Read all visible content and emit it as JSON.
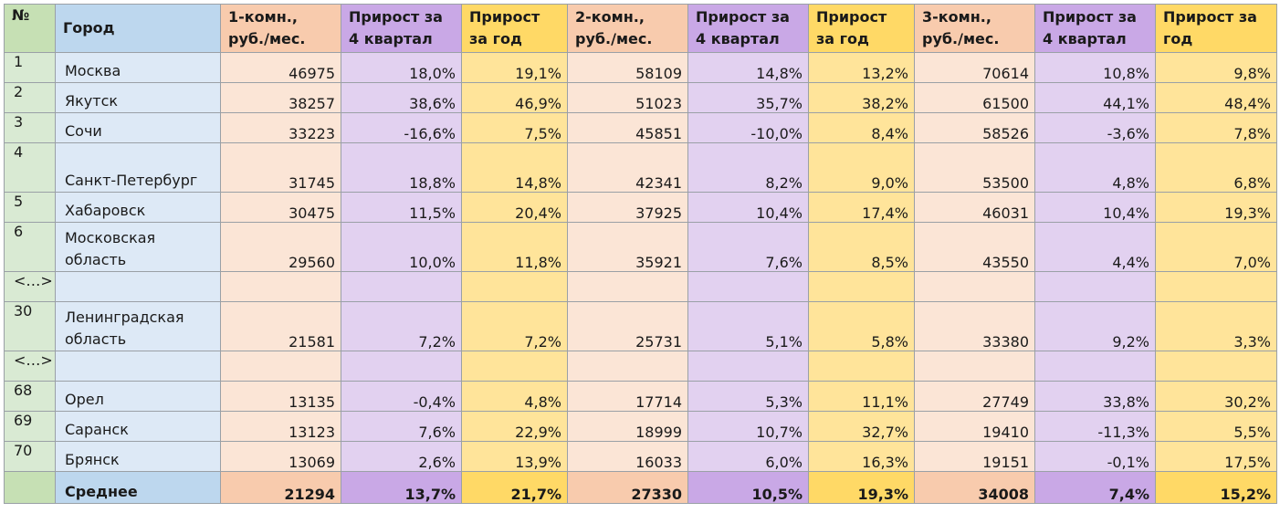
{
  "columns": [
    "№",
    "Город",
    "1-комн., руб./мес.",
    "Прирост за 4 квартал",
    "Прирост за год",
    "2-комн., руб./мес.",
    "Прирост за 4 квартал",
    "Прирост за год",
    "3-комн., руб./мес.",
    "Прирост за 4 квартал",
    "Прирост за год"
  ],
  "rows": [
    {
      "n": "1",
      "city": "Москва",
      "p1": "46975",
      "q1": "18,0%",
      "y1": "19,1%",
      "p2": "58109",
      "q2": "14,8%",
      "y2": "13,2%",
      "p3": "70614",
      "q3": "10,8%",
      "y3": "9,8%"
    },
    {
      "n": "2",
      "city": "Якутск",
      "p1": "38257",
      "q1": "38,6%",
      "y1": "46,9%",
      "p2": "51023",
      "q2": "35,7%",
      "y2": "38,2%",
      "p3": "61500",
      "q3": "44,1%",
      "y3": "48,4%"
    },
    {
      "n": "3",
      "city": "Сочи",
      "p1": "33223",
      "q1": "-16,6%",
      "y1": "7,5%",
      "p2": "45851",
      "q2": "-10,0%",
      "y2": "8,4%",
      "p3": "58526",
      "q3": "-3,6%",
      "y3": "7,8%"
    },
    {
      "n": "4",
      "city": "Санкт-Петербург",
      "p1": "31745",
      "q1": "18,8%",
      "y1": "14,8%",
      "p2": "42341",
      "q2": "8,2%",
      "y2": "9,0%",
      "p3": "53500",
      "q3": "4,8%",
      "y3": "6,8%"
    },
    {
      "n": "5",
      "city": "Хабаровск",
      "p1": "30475",
      "q1": "11,5%",
      "y1": "20,4%",
      "p2": "37925",
      "q2": "10,4%",
      "y2": "17,4%",
      "p3": "46031",
      "q3": "10,4%",
      "y3": "19,3%"
    },
    {
      "n": "6",
      "city": "Московская область",
      "p1": "29560",
      "q1": "10,0%",
      "y1": "11,8%",
      "p2": "35921",
      "q2": "7,6%",
      "y2": "8,5%",
      "p3": "43550",
      "q3": "4,4%",
      "y3": "7,0%"
    },
    {
      "n": "<…>",
      "city": "",
      "p1": "",
      "q1": "",
      "y1": "",
      "p2": "",
      "q2": "",
      "y2": "",
      "p3": "",
      "q3": "",
      "y3": ""
    },
    {
      "n": "30",
      "city": "Ленинградская область",
      "p1": "21581",
      "q1": "7,2%",
      "y1": "7,2%",
      "p2": "25731",
      "q2": "5,1%",
      "y2": "5,8%",
      "p3": "33380",
      "q3": "9,2%",
      "y3": "3,3%"
    },
    {
      "n": "<…>",
      "city": "",
      "p1": "",
      "q1": "",
      "y1": "",
      "p2": "",
      "q2": "",
      "y2": "",
      "p3": "",
      "q3": "",
      "y3": ""
    },
    {
      "n": "68",
      "city": "Орел",
      "p1": "13135",
      "q1": "-0,4%",
      "y1": "4,8%",
      "p2": "17714",
      "q2": "5,3%",
      "y2": "11,1%",
      "p3": "27749",
      "q3": "33,8%",
      "y3": "30,2%"
    },
    {
      "n": "69",
      "city": "Саранск",
      "p1": "13123",
      "q1": "7,6%",
      "y1": "22,9%",
      "p2": "18999",
      "q2": "10,7%",
      "y2": "32,7%",
      "p3": "19410",
      "q3": "-11,3%",
      "y3": "5,5%"
    },
    {
      "n": "70",
      "city": "Брянск",
      "p1": "13069",
      "q1": "2,6%",
      "y1": "13,9%",
      "p2": "16033",
      "q2": "6,0%",
      "y2": "16,3%",
      "p3": "19151",
      "q3": "-0,1%",
      "y3": "17,5%"
    }
  ],
  "footer": {
    "n": "",
    "city": "Среднее",
    "p1": "21294",
    "q1": "13,7%",
    "y1": "21,7%",
    "p2": "27330",
    "q2": "10,5%",
    "y2": "19,3%",
    "p3": "34008",
    "q3": "7,4%",
    "y3": "15,2%"
  },
  "colors": {
    "num": "#d9ead3",
    "city": "#dde9f6",
    "price": "#fbe5d6",
    "quarter": "#e2d1f0",
    "year": "#ffe49a"
  }
}
